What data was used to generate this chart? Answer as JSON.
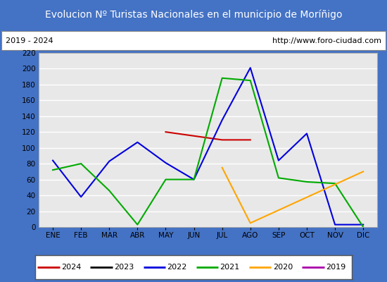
{
  "title": "Evolucion Nº Turistas Nacionales en el municipio de Moríñigo",
  "subtitle_left": "2019 - 2024",
  "subtitle_right": "http://www.foro-ciudad.com",
  "title_bg_color": "#4472c4",
  "title_text_color": "#ffffff",
  "months": [
    "ENE",
    "FEB",
    "MAR",
    "ABR",
    "MAY",
    "JUN",
    "JUL",
    "AGO",
    "SEP",
    "OCT",
    "NOV",
    "DIC"
  ],
  "ylim": [
    0,
    220
  ],
  "yticks": [
    0,
    20,
    40,
    60,
    80,
    100,
    120,
    140,
    160,
    180,
    200,
    220
  ],
  "series": {
    "2024": {
      "color": "#cc0000",
      "values": [
        null,
        null,
        null,
        null,
        120,
        115,
        110,
        110,
        null,
        null,
        null,
        null
      ]
    },
    "2023": {
      "color": "#000000",
      "values": [
        null,
        null,
        null,
        null,
        null,
        null,
        null,
        null,
        null,
        null,
        null,
        null
      ]
    },
    "2022": {
      "color": "#0000dd",
      "values": [
        84,
        38,
        83,
        107,
        81,
        60,
        135,
        201,
        84,
        118,
        3,
        3
      ]
    },
    "2021": {
      "color": "#00aa00",
      "values": [
        72,
        80,
        46,
        3,
        60,
        60,
        188,
        185,
        62,
        57,
        55,
        0
      ]
    },
    "2020": {
      "color": "#ffa500",
      "values": [
        null,
        null,
        null,
        null,
        null,
        null,
        75,
        5,
        null,
        null,
        null,
        70
      ]
    },
    "2019": {
      "color": "#aa00aa",
      "values": [
        null,
        null,
        null,
        null,
        null,
        null,
        null,
        null,
        null,
        null,
        null,
        null
      ]
    }
  },
  "legend_order": [
    "2024",
    "2023",
    "2022",
    "2021",
    "2020",
    "2019"
  ],
  "plot_bg_color": "#e8e8e8",
  "grid_color": "#ffffff",
  "border_color": "#4472c4",
  "fig_bg_color": "#4472c4"
}
